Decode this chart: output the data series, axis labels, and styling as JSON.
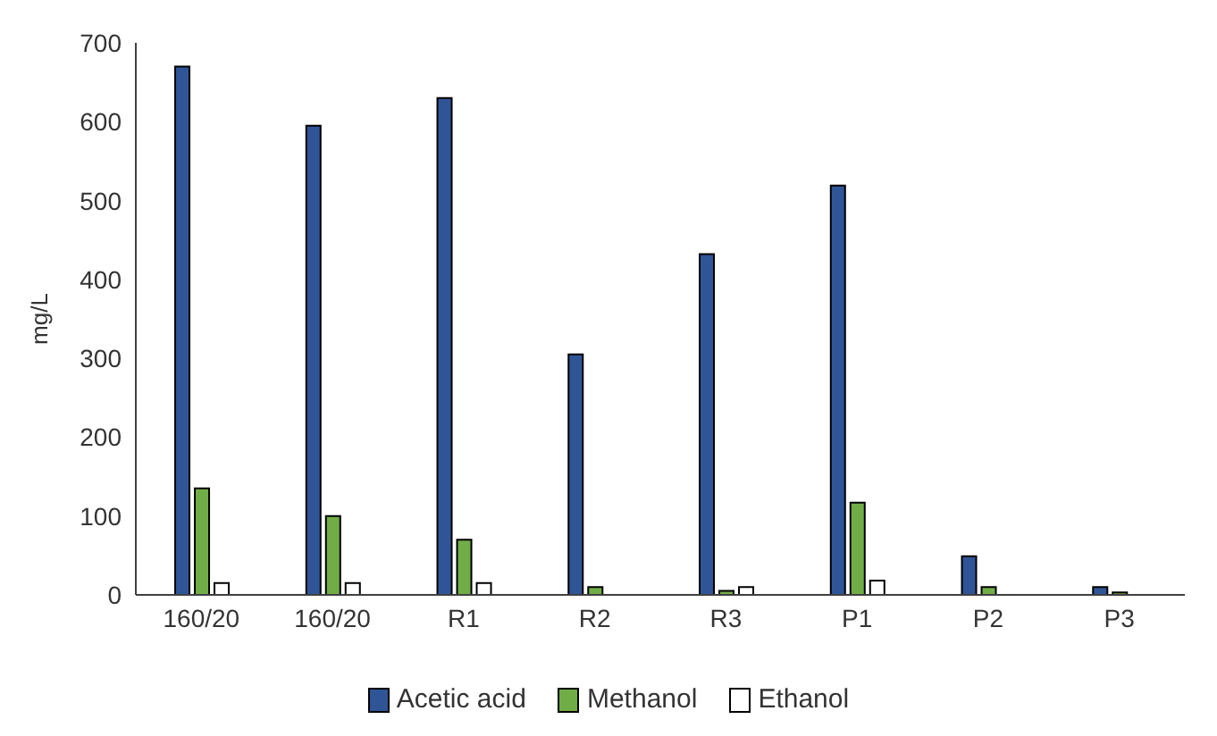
{
  "chart_data": {
    "type": "bar",
    "ylabel": "mg/L",
    "categories": [
      "160/20",
      "160/20",
      "R1",
      "R2",
      "R3",
      "P1",
      "P2",
      "P3"
    ],
    "series": [
      {
        "name": "Acetic acid",
        "color": "#2f5597",
        "values": [
          670,
          595,
          630,
          305,
          432,
          519,
          49,
          10
        ]
      },
      {
        "name": "Methanol",
        "color": "#70ad47",
        "values": [
          135,
          100,
          70,
          10,
          5,
          117,
          10,
          3
        ]
      },
      {
        "name": "Ethanol",
        "color": "#ffffff",
        "values": [
          15,
          15,
          15,
          null,
          10,
          18,
          null,
          null
        ]
      }
    ],
    "ylim": [
      0,
      700
    ],
    "yticks": [
      0,
      100,
      200,
      300,
      400,
      500,
      600,
      700
    ],
    "grid": false,
    "legend": "bottom"
  }
}
